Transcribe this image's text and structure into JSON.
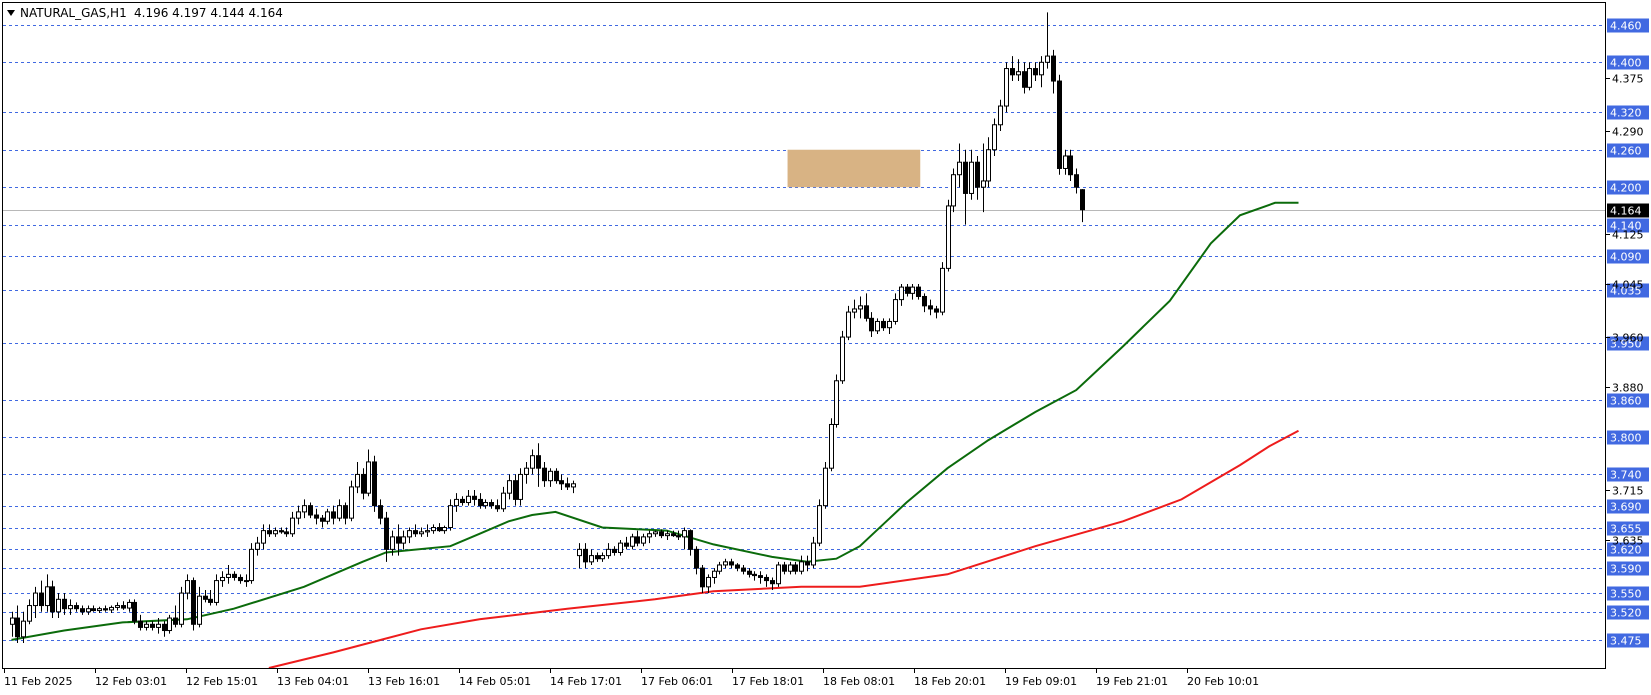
{
  "header": {
    "symbol": "NATURAL_GAS,H1",
    "ohlc": "4.196 4.197 4.144 4.164",
    "menu_icon": "triangle-down-icon"
  },
  "colors": {
    "level_line": "#4169e1",
    "level_label_bg": "#4169e1",
    "price_label_bg": "#000000",
    "ma_fast": "#0b6b0b",
    "ma_slow": "#ee1c1c",
    "zone_fill": "#d8b384",
    "candle_up_fill": "#ffffff",
    "candle_down_fill": "#000000",
    "candle_wick": "#000000"
  },
  "chart_data": {
    "type": "candlestick",
    "timeframe": "H1",
    "ylim": [
      3.43,
      4.495
    ],
    "current_price": 4.164,
    "x_tick_labels": [
      "11 Feb 2025",
      "12 Feb 03:01",
      "12 Feb 15:01",
      "13 Feb 04:01",
      "13 Feb 16:01",
      "14 Feb 05:01",
      "14 Feb 17:01",
      "17 Feb 06:01",
      "17 Feb 18:01",
      "18 Feb 08:01",
      "18 Feb 20:01",
      "19 Feb 09:01",
      "19 Feb 21:01",
      "20 Feb 10:01"
    ],
    "y_tick_labels": [
      "4.375",
      "4.290",
      "4.125",
      "4.045",
      "3.960",
      "3.880",
      "3.715",
      "3.635"
    ],
    "y_tick_values": [
      4.375,
      4.29,
      4.125,
      4.045,
      3.96,
      3.88,
      3.715,
      3.635
    ],
    "levels": [
      4.46,
      4.4,
      4.32,
      4.26,
      4.2,
      4.14,
      4.09,
      4.035,
      3.95,
      3.86,
      3.8,
      3.74,
      3.69,
      3.655,
      3.62,
      3.59,
      3.55,
      3.52,
      3.475
    ],
    "level_labels": [
      "4.460",
      "4.400",
      "4.320",
      "4.260",
      "4.200",
      "4.140",
      "4.090",
      "4.035",
      "3.950",
      "3.860",
      "3.800",
      "3.740",
      "3.690",
      "3.655",
      "3.620",
      "3.590",
      "3.550",
      "3.520",
      "3.475"
    ],
    "current_price_label": "4.164",
    "zone": {
      "x_start_index": 133,
      "x_end_index": 155,
      "y_low": 4.2,
      "y_high": 4.26
    },
    "candles": [
      [
        3.5,
        3.52,
        3.48,
        3.51
      ],
      [
        3.51,
        3.53,
        3.47,
        3.48
      ],
      [
        3.48,
        3.52,
        3.47,
        3.505
      ],
      [
        3.505,
        3.54,
        3.5,
        3.53
      ],
      [
        3.53,
        3.56,
        3.51,
        3.55
      ],
      [
        3.55,
        3.57,
        3.52,
        3.53
      ],
      [
        3.53,
        3.58,
        3.52,
        3.56
      ],
      [
        3.56,
        3.57,
        3.51,
        3.52
      ],
      [
        3.52,
        3.55,
        3.51,
        3.54
      ],
      [
        3.54,
        3.55,
        3.515,
        3.525
      ],
      [
        3.525,
        3.54,
        3.515,
        3.53
      ],
      [
        3.53,
        3.535,
        3.52,
        3.525
      ],
      [
        3.525,
        3.53,
        3.515,
        3.52
      ],
      [
        3.52,
        3.53,
        3.515,
        3.525
      ],
      [
        3.525,
        3.53,
        3.52,
        3.522
      ],
      [
        3.522,
        3.528,
        3.518,
        3.525
      ],
      [
        3.525,
        3.53,
        3.52,
        3.523
      ],
      [
        3.523,
        3.53,
        3.518,
        3.527
      ],
      [
        3.527,
        3.535,
        3.522,
        3.53
      ],
      [
        3.53,
        3.537,
        3.523,
        3.526
      ],
      [
        3.526,
        3.54,
        3.52,
        3.535
      ],
      [
        3.535,
        3.54,
        3.5,
        3.505
      ],
      [
        3.505,
        3.515,
        3.49,
        3.495
      ],
      [
        3.495,
        3.505,
        3.49,
        3.5
      ],
      [
        3.5,
        3.505,
        3.49,
        3.495
      ],
      [
        3.495,
        3.51,
        3.485,
        3.5
      ],
      [
        3.5,
        3.505,
        3.48,
        3.49
      ],
      [
        3.49,
        3.515,
        3.485,
        3.51
      ],
      [
        3.51,
        3.53,
        3.495,
        3.5
      ],
      [
        3.5,
        3.56,
        3.495,
        3.55
      ],
      [
        3.55,
        3.58,
        3.54,
        3.57
      ],
      [
        3.57,
        3.575,
        3.49,
        3.5
      ],
      [
        3.5,
        3.56,
        3.495,
        3.545
      ],
      [
        3.545,
        3.555,
        3.535,
        3.54
      ],
      [
        3.54,
        3.555,
        3.53,
        3.535
      ],
      [
        3.535,
        3.58,
        3.53,
        3.57
      ],
      [
        3.57,
        3.585,
        3.56,
        3.575
      ],
      [
        3.575,
        3.595,
        3.565,
        3.58
      ],
      [
        3.58,
        3.585,
        3.57,
        3.575
      ],
      [
        3.575,
        3.58,
        3.565,
        3.57
      ],
      [
        3.57,
        3.58,
        3.56,
        3.57
      ],
      [
        3.57,
        3.63,
        3.565,
        3.62
      ],
      [
        3.62,
        3.64,
        3.61,
        3.63
      ],
      [
        3.63,
        3.66,
        3.62,
        3.65
      ],
      [
        3.65,
        3.66,
        3.64,
        3.645
      ],
      [
        3.645,
        3.655,
        3.64,
        3.65
      ],
      [
        3.65,
        3.655,
        3.645,
        3.648
      ],
      [
        3.648,
        3.655,
        3.64,
        3.645
      ],
      [
        3.645,
        3.68,
        3.64,
        3.67
      ],
      [
        3.67,
        3.69,
        3.66,
        3.68
      ],
      [
        3.68,
        3.7,
        3.67,
        3.69
      ],
      [
        3.69,
        3.695,
        3.67,
        3.675
      ],
      [
        3.675,
        3.685,
        3.66,
        3.67
      ],
      [
        3.67,
        3.675,
        3.655,
        3.665
      ],
      [
        3.665,
        3.685,
        3.66,
        3.68
      ],
      [
        3.68,
        3.69,
        3.66,
        3.67
      ],
      [
        3.67,
        3.7,
        3.665,
        3.69
      ],
      [
        3.69,
        3.695,
        3.66,
        3.67
      ],
      [
        3.67,
        3.73,
        3.665,
        3.72
      ],
      [
        3.72,
        3.76,
        3.71,
        3.74
      ],
      [
        3.74,
        3.75,
        3.7,
        3.71
      ],
      [
        3.71,
        3.78,
        3.705,
        3.76
      ],
      [
        3.76,
        3.77,
        3.68,
        3.69
      ],
      [
        3.69,
        3.7,
        3.66,
        3.67
      ],
      [
        3.67,
        3.68,
        3.6,
        3.62
      ],
      [
        3.62,
        3.65,
        3.61,
        3.64
      ],
      [
        3.64,
        3.66,
        3.61,
        3.63
      ],
      [
        3.63,
        3.65,
        3.62,
        3.64
      ],
      [
        3.64,
        3.655,
        3.63,
        3.65
      ],
      [
        3.65,
        3.66,
        3.64,
        3.645
      ],
      [
        3.645,
        3.655,
        3.64,
        3.648
      ],
      [
        3.648,
        3.66,
        3.64,
        3.65
      ],
      [
        3.65,
        3.66,
        3.645,
        3.655
      ],
      [
        3.655,
        3.662,
        3.648,
        3.65
      ],
      [
        3.65,
        3.658,
        3.645,
        3.655
      ],
      [
        3.655,
        3.7,
        3.65,
        3.69
      ],
      [
        3.69,
        3.71,
        3.68,
        3.7
      ],
      [
        3.7,
        3.705,
        3.69,
        3.695
      ],
      [
        3.695,
        3.715,
        3.69,
        3.705
      ],
      [
        3.705,
        3.715,
        3.69,
        3.7
      ],
      [
        3.7,
        3.71,
        3.685,
        3.69
      ],
      [
        3.69,
        3.7,
        3.685,
        3.695
      ],
      [
        3.695,
        3.7,
        3.685,
        3.69
      ],
      [
        3.69,
        3.7,
        3.68,
        3.685
      ],
      [
        3.685,
        3.72,
        3.68,
        3.71
      ],
      [
        3.71,
        3.74,
        3.7,
        3.73
      ],
      [
        3.73,
        3.74,
        3.69,
        3.7
      ],
      [
        3.7,
        3.75,
        3.69,
        3.74
      ],
      [
        3.74,
        3.76,
        3.725,
        3.75
      ],
      [
        3.75,
        3.78,
        3.74,
        3.77
      ],
      [
        3.77,
        3.79,
        3.72,
        3.75
      ],
      [
        3.75,
        3.76,
        3.72,
        3.73
      ],
      [
        3.73,
        3.75,
        3.72,
        3.745
      ],
      [
        3.745,
        3.75,
        3.725,
        3.73
      ],
      [
        3.73,
        3.74,
        3.715,
        3.725
      ],
      [
        3.725,
        3.735,
        3.715,
        3.72
      ],
      [
        3.72,
        3.73,
        3.71,
        3.725
      ],
      [
        3.61,
        3.63,
        3.59,
        3.62
      ],
      [
        3.62,
        3.63,
        3.59,
        3.6
      ],
      [
        3.6,
        3.62,
        3.595,
        3.61
      ],
      [
        3.61,
        3.615,
        3.6,
        3.605
      ],
      [
        3.605,
        3.615,
        3.6,
        3.61
      ],
      [
        3.61,
        3.63,
        3.605,
        3.62
      ],
      [
        3.62,
        3.625,
        3.61,
        3.615
      ],
      [
        3.615,
        3.635,
        3.61,
        3.63
      ],
      [
        3.63,
        3.64,
        3.62,
        3.625
      ],
      [
        3.625,
        3.645,
        3.62,
        3.64
      ],
      [
        3.64,
        3.65,
        3.625,
        3.63
      ],
      [
        3.63,
        3.645,
        3.625,
        3.64
      ],
      [
        3.64,
        3.65,
        3.63,
        3.645
      ],
      [
        3.645,
        3.65,
        3.64,
        3.648
      ],
      [
        3.648,
        3.652,
        3.638,
        3.642
      ],
      [
        3.642,
        3.65,
        3.635,
        3.645
      ],
      [
        3.645,
        3.65,
        3.64,
        3.642
      ],
      [
        3.642,
        3.65,
        3.635,
        3.64
      ],
      [
        3.64,
        3.655,
        3.62,
        3.65
      ],
      [
        3.65,
        3.652,
        3.61,
        3.62
      ],
      [
        3.62,
        3.625,
        3.58,
        3.59
      ],
      [
        3.59,
        3.595,
        3.55,
        3.56
      ],
      [
        3.56,
        3.58,
        3.55,
        3.575
      ],
      [
        3.575,
        3.59,
        3.565,
        3.585
      ],
      [
        3.585,
        3.6,
        3.58,
        3.595
      ],
      [
        3.595,
        3.605,
        3.59,
        3.6
      ],
      [
        3.6,
        3.605,
        3.59,
        3.595
      ],
      [
        3.595,
        3.598,
        3.585,
        3.59
      ],
      [
        3.59,
        3.595,
        3.58,
        3.585
      ],
      [
        3.585,
        3.59,
        3.575,
        3.58
      ],
      [
        3.58,
        3.585,
        3.57,
        3.578
      ],
      [
        3.578,
        3.585,
        3.565,
        3.575
      ],
      [
        3.575,
        3.58,
        3.56,
        3.57
      ],
      [
        3.57,
        3.575,
        3.555,
        3.565
      ],
      [
        3.565,
        3.6,
        3.56,
        3.595
      ],
      [
        3.595,
        3.6,
        3.58,
        3.585
      ],
      [
        3.585,
        3.6,
        3.58,
        3.595
      ],
      [
        3.595,
        3.6,
        3.58,
        3.585
      ],
      [
        3.585,
        3.61,
        3.58,
        3.6
      ],
      [
        3.6,
        3.61,
        3.585,
        3.595
      ],
      [
        3.595,
        3.64,
        3.59,
        3.63
      ],
      [
        3.63,
        3.7,
        3.625,
        3.69
      ],
      [
        3.69,
        3.76,
        3.685,
        3.75
      ],
      [
        3.75,
        3.83,
        3.745,
        3.82
      ],
      [
        3.82,
        3.9,
        3.815,
        3.89
      ],
      [
        3.89,
        3.97,
        3.885,
        3.96
      ],
      [
        3.96,
        4.01,
        3.955,
        4.0
      ],
      [
        4.0,
        4.02,
        3.99,
        4.005
      ],
      [
        4.005,
        4.025,
        3.99,
        4.01
      ],
      [
        4.01,
        4.03,
        3.985,
        3.99
      ],
      [
        3.99,
        4.0,
        3.96,
        3.97
      ],
      [
        3.97,
        3.99,
        3.965,
        3.985
      ],
      [
        3.985,
        3.99,
        3.97,
        3.975
      ],
      [
        3.975,
        3.99,
        3.965,
        3.985
      ],
      [
        3.985,
        4.03,
        3.98,
        4.02
      ],
      [
        4.02,
        4.045,
        4.01,
        4.04
      ],
      [
        4.04,
        4.045,
        4.025,
        4.03
      ],
      [
        4.03,
        4.045,
        4.02,
        4.04
      ],
      [
        4.04,
        4.045,
        4.02,
        4.025
      ],
      [
        4.025,
        4.03,
        4.0,
        4.01
      ],
      [
        4.01,
        4.02,
        3.995,
        4.005
      ],
      [
        4.005,
        4.01,
        3.99,
        4.0
      ],
      [
        4.0,
        4.08,
        3.995,
        4.07
      ],
      [
        4.07,
        4.18,
        4.065,
        4.17
      ],
      [
        4.17,
        4.23,
        4.16,
        4.22
      ],
      [
        4.22,
        4.27,
        4.2,
        4.24
      ],
      [
        4.24,
        4.26,
        4.14,
        4.19
      ],
      [
        4.19,
        4.26,
        4.18,
        4.24
      ],
      [
        4.24,
        4.25,
        4.18,
        4.2
      ],
      [
        4.2,
        4.27,
        4.16,
        4.21
      ],
      [
        4.21,
        4.28,
        4.2,
        4.26
      ],
      [
        4.26,
        4.31,
        4.25,
        4.3
      ],
      [
        4.3,
        4.34,
        4.29,
        4.33
      ],
      [
        4.33,
        4.4,
        4.32,
        4.39
      ],
      [
        4.39,
        4.41,
        4.37,
        4.38
      ],
      [
        4.38,
        4.405,
        4.37,
        4.385
      ],
      [
        4.385,
        4.4,
        4.35,
        4.36
      ],
      [
        4.36,
        4.4,
        4.355,
        4.39
      ],
      [
        4.39,
        4.4,
        4.37,
        4.38
      ],
      [
        4.38,
        4.41,
        4.36,
        4.4
      ],
      [
        4.4,
        4.48,
        4.39,
        4.41
      ],
      [
        4.41,
        4.42,
        4.35,
        4.37
      ],
      [
        4.37,
        4.38,
        4.22,
        4.23
      ],
      [
        4.23,
        4.26,
        4.22,
        4.25
      ],
      [
        4.25,
        4.26,
        4.21,
        4.22
      ],
      [
        4.22,
        4.23,
        4.19,
        4.2
      ],
      [
        4.196,
        4.197,
        4.144,
        4.164
      ]
    ],
    "ma_fast": [
      [
        0,
        3.475
      ],
      [
        9,
        3.49
      ],
      [
        19,
        3.503
      ],
      [
        30,
        3.508
      ],
      [
        38,
        3.525
      ],
      [
        50,
        3.56
      ],
      [
        60,
        3.6
      ],
      [
        64,
        3.615
      ],
      [
        75,
        3.625
      ],
      [
        80,
        3.645
      ],
      [
        85,
        3.665
      ],
      [
        89,
        3.675
      ],
      [
        93,
        3.68
      ],
      [
        101,
        3.655
      ],
      [
        112,
        3.65
      ],
      [
        120,
        3.628
      ],
      [
        130,
        3.608
      ],
      [
        136,
        3.6
      ],
      [
        141,
        3.605
      ],
      [
        145,
        3.625
      ],
      [
        153,
        3.695
      ],
      [
        160,
        3.75
      ],
      [
        167,
        3.795
      ],
      [
        175,
        3.84
      ],
      [
        182,
        3.875
      ],
      [
        190,
        3.945
      ],
      [
        198,
        4.018
      ],
      [
        205,
        4.11
      ],
      [
        210,
        4.155
      ],
      [
        216,
        4.175
      ],
      [
        220,
        4.175
      ]
    ],
    "ma_slow": [
      [
        44,
        3.43
      ],
      [
        55,
        3.455
      ],
      [
        70,
        3.492
      ],
      [
        80,
        3.508
      ],
      [
        95,
        3.525
      ],
      [
        110,
        3.54
      ],
      [
        120,
        3.553
      ],
      [
        135,
        3.56
      ],
      [
        145,
        3.56
      ],
      [
        160,
        3.58
      ],
      [
        175,
        3.625
      ],
      [
        190,
        3.665
      ],
      [
        200,
        3.7
      ],
      [
        210,
        3.755
      ],
      [
        215,
        3.785
      ],
      [
        220,
        3.81
      ]
    ]
  }
}
